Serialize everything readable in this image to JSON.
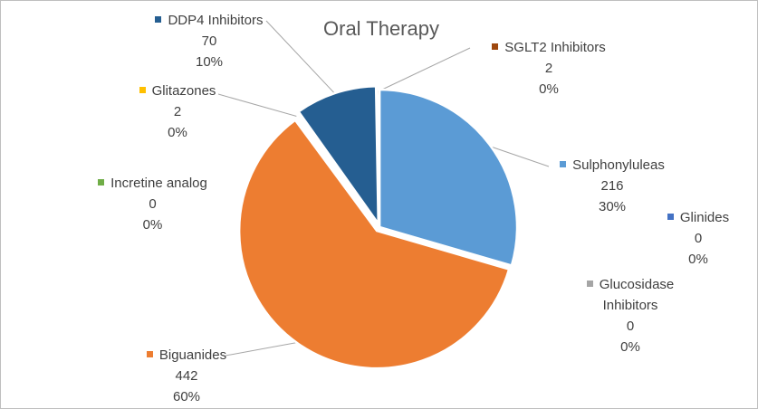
{
  "chart_data": {
    "type": "pie",
    "title": "Oral Therapy",
    "start_angle_deg": 0,
    "direction": "clockwise",
    "slices": [
      {
        "label": "Sulphonyluleas",
        "value": 216,
        "percent": "30%",
        "color": "#5b9bd5"
      },
      {
        "label": "Glinides",
        "value": 0,
        "percent": "0%",
        "color": "#4472c4"
      },
      {
        "label": "Glucosidase Inhibitors",
        "value": 0,
        "percent": "0%",
        "color": "#a5a5a5"
      },
      {
        "label": "Biguanides",
        "value": 442,
        "percent": "60%",
        "color": "#ed7d31"
      },
      {
        "label": "Incretine analog",
        "value": 0,
        "percent": "0%",
        "color": "#70ad47"
      },
      {
        "label": "Glitazones",
        "value": 2,
        "percent": "0%",
        "color": "#ffc000"
      },
      {
        "label": "DDP4 Inhibitors",
        "value": 70,
        "percent": "10%",
        "color": "#255e91"
      },
      {
        "label": "SGLT2 Inhibitors",
        "value": 2,
        "percent": "0%",
        "color": "#9e480e"
      }
    ]
  }
}
